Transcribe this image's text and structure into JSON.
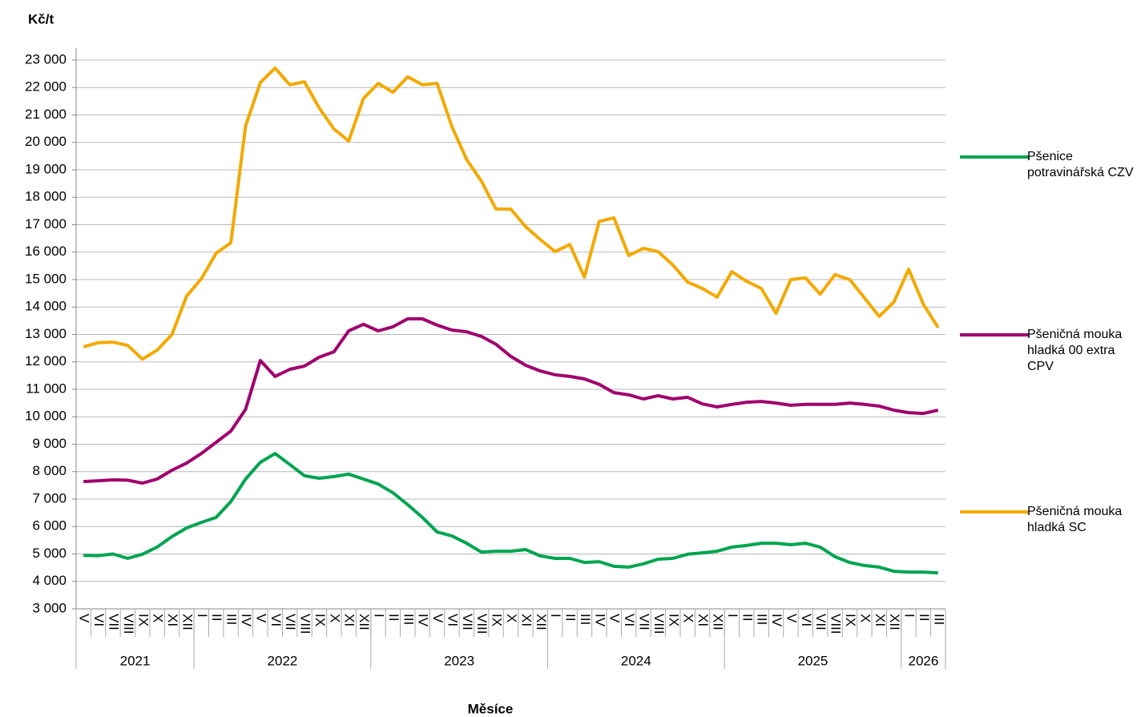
{
  "chart_data": {
    "type": "line",
    "y_axis_label": "Kč/t",
    "x_axis_label": "Měsíce",
    "category_groups": [
      {
        "name": "2021",
        "categories": [
          "V",
          "VI",
          "VII",
          "VIII",
          "IX",
          "X",
          "XI",
          "XII"
        ]
      },
      {
        "name": "2022",
        "categories": [
          "I",
          "II",
          "III",
          "IV",
          "V",
          "VI",
          "VII",
          "VIII",
          "IX",
          "X",
          "XI",
          "XII"
        ]
      },
      {
        "name": "2023",
        "categories": [
          "I",
          "II",
          "III",
          "IV",
          "V",
          "VI",
          "VII",
          "VIII",
          "IX",
          "X",
          "XI",
          "XII"
        ]
      },
      {
        "name": "2024",
        "categories": [
          "I",
          "II",
          "III",
          "IV",
          "V",
          "VI",
          "VII",
          "VIII",
          "IX",
          "X",
          "XI",
          "XII"
        ]
      },
      {
        "name": "2025",
        "categories": [
          "I",
          "II",
          "III",
          "IV",
          "V",
          "VI",
          "VII",
          "VIII",
          "IX",
          "X",
          "XI",
          "XII"
        ]
      },
      {
        "name": "2026",
        "categories": [
          "I",
          "II",
          "III"
        ]
      }
    ],
    "ylim": [
      3000,
      23000
    ],
    "yticks": [
      {
        "value": 3000,
        "label": "3 000"
      },
      {
        "value": 4000,
        "label": "4 000"
      },
      {
        "value": 5000,
        "label": "5 000"
      },
      {
        "value": 6000,
        "label": "6 000"
      },
      {
        "value": 7000,
        "label": "7 000"
      },
      {
        "value": 8000,
        "label": "8 000"
      },
      {
        "value": 9000,
        "label": "9 000"
      },
      {
        "value": 10000,
        "label": "10 000"
      },
      {
        "value": 11000,
        "label": "11 000"
      },
      {
        "value": 12000,
        "label": "12 000"
      },
      {
        "value": 13000,
        "label": "13 000"
      },
      {
        "value": 14000,
        "label": "14 000"
      },
      {
        "value": 15000,
        "label": "15 000"
      },
      {
        "value": 16000,
        "label": "16 000"
      },
      {
        "value": 17000,
        "label": "17 000"
      },
      {
        "value": 18000,
        "label": "18 000"
      },
      {
        "value": 19000,
        "label": "19 000"
      },
      {
        "value": 20000,
        "label": "20 000"
      },
      {
        "value": 21000,
        "label": "21 000"
      },
      {
        "value": 22000,
        "label": "22 000"
      },
      {
        "value": 23000,
        "label": "23 000"
      }
    ],
    "grid": true,
    "legend": "right",
    "series": [
      {
        "name": "Pšenice potravinářská  CZV",
        "color": "#00a550",
        "values": [
          4950,
          4940,
          5000,
          4840,
          4990,
          5250,
          5630,
          5950,
          6150,
          6330,
          6910,
          7730,
          8340,
          8660,
          8260,
          7850,
          7760,
          7820,
          7910,
          7730,
          7550,
          7230,
          6800,
          6330,
          5800,
          5660,
          5390,
          5070,
          5100,
          5100,
          5160,
          4930,
          4840,
          4840,
          4690,
          4720,
          4550,
          4520,
          4640,
          4810,
          4840,
          4990,
          5040,
          5100,
          5250,
          5310,
          5390,
          5390,
          5340,
          5390,
          5250,
          4900,
          4690,
          4580,
          4520,
          4370,
          4340,
          4340,
          4310
        ]
      },
      {
        "name": "Pšeničná mouka hladká 00 extra CPV",
        "color": "#a0006e",
        "values": [
          7640,
          7670,
          7700,
          7690,
          7580,
          7730,
          8050,
          8310,
          8660,
          9070,
          9480,
          10270,
          12050,
          11470,
          11730,
          11850,
          12170,
          12370,
          13130,
          13370,
          13130,
          13280,
          13570,
          13570,
          13340,
          13160,
          13100,
          12930,
          12640,
          12200,
          11880,
          11670,
          11530,
          11470,
          11380,
          11180,
          10880,
          10800,
          10650,
          10770,
          10650,
          10710,
          10470,
          10360,
          10450,
          10530,
          10560,
          10500,
          10420,
          10450,
          10450,
          10450,
          10500,
          10450,
          10390,
          10240,
          10150,
          10120,
          10240
        ]
      },
      {
        "name": "Pšeničná mouka hladká   SC",
        "color": "#f2a900",
        "values": [
          12550,
          12700,
          12720,
          12600,
          12100,
          12430,
          12990,
          14400,
          15030,
          15960,
          16340,
          20600,
          22180,
          22710,
          22100,
          22210,
          21250,
          20490,
          20050,
          21600,
          22150,
          21830,
          22390,
          22100,
          22150,
          20580,
          19380,
          18590,
          17570,
          17570,
          16930,
          16460,
          16020,
          16280,
          15090,
          17120,
          17250,
          15880,
          16140,
          16020,
          15530,
          14910,
          14680,
          14360,
          15290,
          14940,
          14680,
          13770,
          15000,
          15060,
          14470,
          15180,
          15000,
          14330,
          13660,
          14180,
          15380,
          14100,
          13250
        ]
      }
    ]
  }
}
